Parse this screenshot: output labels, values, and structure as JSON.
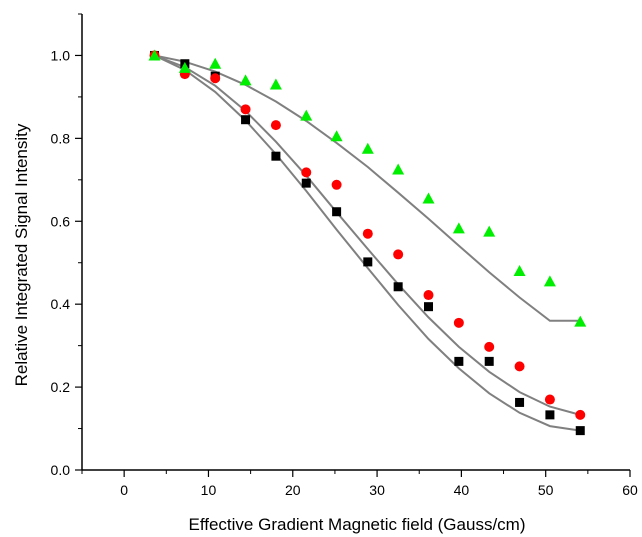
{
  "chart_data": {
    "type": "scatter",
    "title": "",
    "xlabel": "Effective Gradient Magnetic field (Gauss/cm)",
    "ylabel": "Relative Integrated Signal Intensity",
    "xlim": [
      -5,
      60
    ],
    "ylim": [
      0.0,
      1.1
    ],
    "xticks": [
      0,
      10,
      20,
      30,
      40,
      50,
      60
    ],
    "yticks": [
      0.0,
      0.2,
      0.4,
      0.6,
      0.8,
      1.0
    ],
    "ytick_labels": [
      "0.0",
      "0.2",
      "0.4",
      "0.6",
      "0.8",
      "1.0"
    ],
    "grid": false,
    "legend": "none",
    "fit_color": "#808080",
    "series": [
      {
        "marker": "square",
        "color": "#000000",
        "x": [
          3.6,
          7.2,
          10.8,
          14.4,
          18.0,
          21.6,
          25.2,
          28.9,
          32.5,
          36.1,
          39.7,
          43.3,
          46.9,
          50.5,
          54.1
        ],
        "y": [
          1.0,
          0.98,
          0.95,
          0.845,
          0.757,
          0.692,
          0.623,
          0.502,
          0.442,
          0.394,
          0.262,
          0.262,
          0.163,
          0.133,
          0.095
        ],
        "fit": [
          1.0,
          0.965,
          0.912,
          0.843,
          0.762,
          0.673,
          0.58,
          0.487,
          0.398,
          0.316,
          0.245,
          0.185,
          0.138,
          0.106,
          0.095
        ]
      },
      {
        "marker": "circle",
        "color": "#ff0000",
        "x": [
          3.6,
          7.2,
          10.8,
          14.4,
          18.0,
          21.6,
          25.2,
          28.9,
          32.5,
          36.1,
          39.7,
          43.3,
          46.9,
          50.5,
          54.1
        ],
        "y": [
          1.0,
          0.955,
          0.945,
          0.87,
          0.832,
          0.718,
          0.688,
          0.57,
          0.52,
          0.422,
          0.355,
          0.297,
          0.25,
          0.17,
          0.133
        ],
        "fit": [
          1.0,
          0.972,
          0.927,
          0.866,
          0.792,
          0.71,
          0.622,
          0.533,
          0.448,
          0.368,
          0.297,
          0.237,
          0.188,
          0.153,
          0.133
        ]
      },
      {
        "marker": "triangle",
        "color": "#00ee00",
        "x": [
          3.6,
          7.2,
          10.8,
          14.4,
          18.0,
          21.6,
          25.2,
          28.9,
          32.5,
          36.1,
          39.7,
          43.3,
          46.9,
          50.5,
          54.1
        ],
        "y": [
          1.0,
          0.97,
          0.98,
          0.94,
          0.93,
          0.855,
          0.805,
          0.775,
          0.725,
          0.655,
          0.583,
          0.575,
          0.48,
          0.455,
          0.358
        ],
        "fit": [
          1.0,
          0.985,
          0.961,
          0.929,
          0.889,
          0.842,
          0.789,
          0.731,
          0.669,
          0.606,
          0.541,
          0.477,
          0.416,
          0.36,
          0.36
        ]
      }
    ]
  }
}
